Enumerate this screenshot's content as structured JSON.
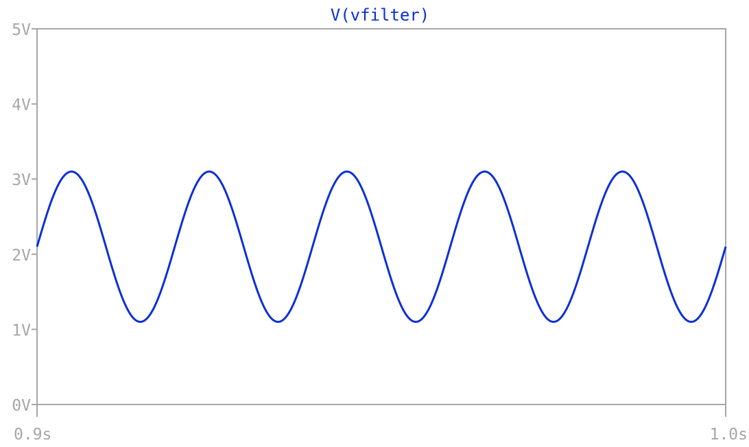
{
  "chart_data": {
    "type": "line",
    "title": "V(vfilter)",
    "xlabel": "",
    "ylabel": "",
    "xlim": [
      0.9,
      1.0
    ],
    "ylim": [
      0,
      5
    ],
    "x_ticks": [
      {
        "value": 0.9,
        "label": "0.9s"
      },
      {
        "value": 1.0,
        "label": "1.0s"
      }
    ],
    "y_ticks": [
      {
        "value": 0,
        "label": "0V"
      },
      {
        "value": 1,
        "label": "1V"
      },
      {
        "value": 2,
        "label": "2V"
      },
      {
        "value": 3,
        "label": "3V"
      },
      {
        "value": 4,
        "label": "4V"
      },
      {
        "value": 5,
        "label": "5V"
      }
    ],
    "grid": false,
    "legend": "none",
    "series": [
      {
        "name": "V(vfilter)",
        "color": "#0c2fd6",
        "waveform": "sine",
        "offset": 2.1,
        "amplitude": 1.0,
        "frequency": 50,
        "phase": 0,
        "x": [
          0.9,
          0.905,
          0.91,
          0.915,
          0.92,
          0.925,
          0.93,
          0.935,
          0.94,
          0.945,
          0.95,
          0.955,
          0.96,
          0.965,
          0.97,
          0.975,
          0.98,
          0.985,
          0.99,
          0.995,
          1.0
        ],
        "values": [
          2.1,
          3.1,
          2.1,
          1.1,
          2.1,
          3.1,
          2.1,
          1.1,
          2.1,
          3.1,
          2.1,
          1.1,
          2.1,
          3.1,
          2.1,
          1.1,
          2.1,
          3.1,
          2.1,
          1.1,
          2.1
        ]
      }
    ]
  },
  "colors": {
    "axis": "#a6a6a6",
    "tick_text": "#a6a6a6",
    "background": "#ffffff"
  }
}
